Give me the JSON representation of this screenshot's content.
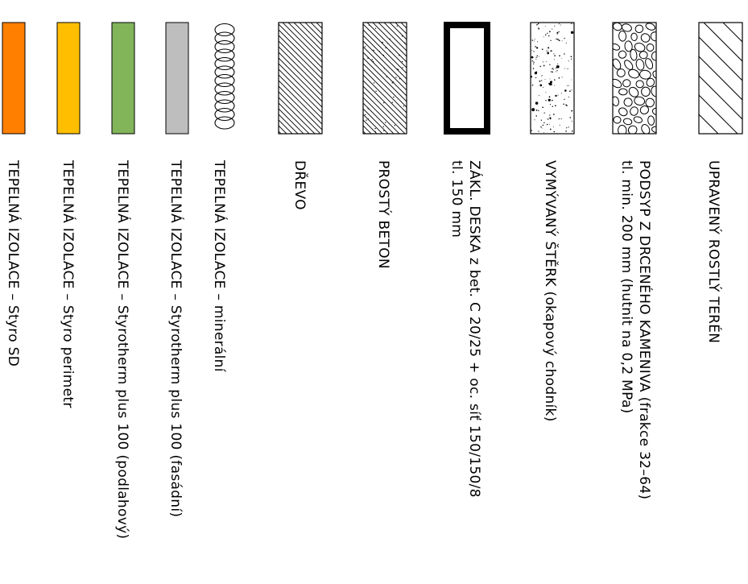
{
  "legend": {
    "items": [
      {
        "id": "rostly-teren",
        "pattern": "sparse-hatch",
        "lines": [
          "UPRAVENÝ ROSTLÝ TERÉN"
        ]
      },
      {
        "id": "podsyp",
        "pattern": "gravel",
        "lines": [
          "PODSYP Z DRCENÉHO KAMENIVA (frakce 32–64)",
          "tl. min. 200 mm (hutnit na 0,2 MPa)"
        ]
      },
      {
        "id": "sterk",
        "pattern": "stipple",
        "lines": [
          "VYMÝVANÝ ŠTĚRK (okapový chodník)"
        ]
      },
      {
        "id": "zakl-deska",
        "pattern": "thick-outline",
        "lines": [
          "ZÁKL. DESKA z bet. C 20/25 + oc. síť 150/150/8",
          "tl. 150 mm"
        ]
      },
      {
        "id": "prosty-beton",
        "pattern": "dense-hatch-dots",
        "lines": [
          "PROSTÝ BETON"
        ]
      },
      {
        "id": "drevo",
        "pattern": "hatch",
        "lines": [
          "DŘEVO"
        ]
      },
      {
        "id": "izolace-mineralni",
        "pattern": "loops",
        "lines": [
          "TEPELNÁ IZOLACE – minerální"
        ]
      },
      {
        "id": "izolace-fasadni",
        "pattern": "solid",
        "color": "#BEBEBE",
        "lines": [
          "TEPELNÁ IZOLACE – Styrotherm plus 100 (fasádní)"
        ]
      },
      {
        "id": "izolace-podlahovy",
        "pattern": "solid",
        "color": "#82B45A",
        "lines": [
          "TEPELNÁ IZOLACE – Styrotherm plus 100 (podlahový)"
        ]
      },
      {
        "id": "izolace-perimetr",
        "pattern": "solid",
        "color": "#FFBF00",
        "lines": [
          "TEPELNÁ IZOLACE – Styro perimetr"
        ]
      },
      {
        "id": "izolace-sd",
        "pattern": "solid",
        "color": "#FF7F00",
        "lines": [
          "TEPELNÁ IZOLACE – Styro SD"
        ]
      }
    ]
  }
}
